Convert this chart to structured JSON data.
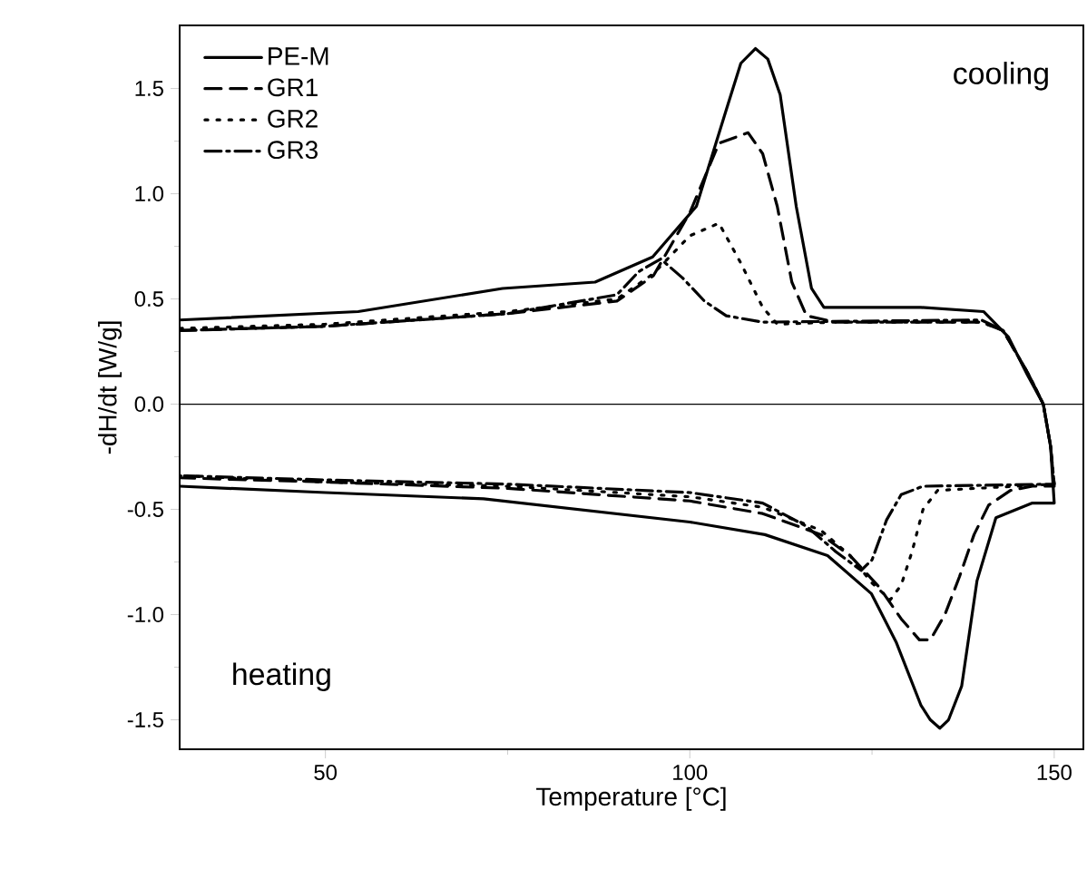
{
  "chart_data": {
    "type": "line",
    "xlabel": "Temperature [°C]",
    "ylabel": "-dH/dt [W/g]",
    "xlim": [
      30,
      154
    ],
    "ylim": [
      -1.64,
      1.8
    ],
    "xticks": [
      50,
      100,
      150
    ],
    "yticks": [
      -1.5,
      {
        "value": -1,
        "label": "-1.0"
      },
      -0.5,
      {
        "value": 0,
        "label": "0.0"
      },
      0.5,
      {
        "value": 1,
        "label": "1.0"
      },
      1.5
    ],
    "legend": "top left",
    "grid": false,
    "marker": "none",
    "ref_lines": [
      {
        "axis": "y",
        "value": 0,
        "color": "#000000"
      }
    ],
    "annotations": [
      "cooling",
      "heating"
    ],
    "series": [
      {
        "name": "PE-M",
        "color": "#000000",
        "line_style": "solid",
        "x": [
          30,
          54.5,
          74.3,
          87,
          94.9,
          100.9,
          105.1,
          107,
          109,
          110.7,
          112.4,
          114.6,
          116.7,
          118.4,
          131.7,
          140.3,
          143.7,
          146.3,
          148.5,
          149.5,
          150,
          147,
          142,
          139.4,
          137.3,
          135.5,
          134.3,
          133,
          131.7,
          128.3,
          124.9,
          118.9,
          110.3,
          100,
          71.7,
          50,
          30
        ],
        "values": [
          0.4,
          0.44,
          0.55,
          0.58,
          0.7,
          0.94,
          1.41,
          1.62,
          1.69,
          1.64,
          1.47,
          0.94,
          0.55,
          0.46,
          0.46,
          0.44,
          0.32,
          0.14,
          0.0,
          -0.2,
          -0.47,
          -0.47,
          -0.54,
          -0.84,
          -1.34,
          -1.5,
          -1.54,
          -1.5,
          -1.43,
          -1.13,
          -0.9,
          -0.72,
          -0.62,
          -0.56,
          -0.45,
          -0.42,
          -0.39
        ]
      },
      {
        "name": "GR1",
        "color": "#000000",
        "line_style": "dashed",
        "x": [
          30,
          50,
          75,
          90,
          95,
          100,
          104,
          108,
          110,
          112,
          114,
          116,
          120,
          140,
          143,
          146.5,
          148.5,
          149.5,
          150,
          147,
          144,
          141,
          139,
          137,
          135,
          133,
          131.5,
          129,
          126,
          122,
          118,
          110,
          100,
          75,
          50,
          30
        ],
        "values": [
          0.35,
          0.37,
          0.43,
          0.49,
          0.61,
          0.91,
          1.24,
          1.29,
          1.19,
          0.94,
          0.58,
          0.42,
          0.39,
          0.39,
          0.35,
          0.14,
          0.0,
          -0.2,
          -0.39,
          -0.39,
          -0.41,
          -0.48,
          -0.62,
          -0.82,
          -1.0,
          -1.12,
          -1.12,
          -1.02,
          -0.87,
          -0.72,
          -0.62,
          -0.52,
          -0.46,
          -0.4,
          -0.37,
          -0.35
        ]
      },
      {
        "name": "GR2",
        "color": "#000000",
        "line_style": "dotted",
        "x": [
          30,
          50,
          75,
          90,
          95,
          100,
          104,
          107,
          110,
          112,
          120,
          140,
          143,
          146.5,
          148.5,
          149.5,
          150,
          134,
          132,
          130.5,
          129,
          127.5,
          125,
          122,
          118,
          110,
          100,
          75,
          50,
          30
        ],
        "values": [
          0.36,
          0.38,
          0.44,
          0.5,
          0.62,
          0.8,
          0.86,
          0.67,
          0.46,
          0.38,
          0.39,
          0.39,
          0.35,
          0.14,
          0.0,
          -0.2,
          -0.38,
          -0.41,
          -0.5,
          -0.7,
          -0.86,
          -0.93,
          -0.85,
          -0.72,
          -0.6,
          -0.49,
          -0.44,
          -0.39,
          -0.37,
          -0.34
        ]
      },
      {
        "name": "GR3",
        "color": "#000000",
        "line_style": "dashdot",
        "x": [
          30,
          50,
          75,
          90,
          93,
          96,
          99,
          102,
          105,
          110,
          140,
          143,
          146.5,
          148.5,
          149.5,
          150,
          132,
          129,
          127,
          125,
          123.5,
          120,
          116,
          110,
          100,
          75,
          50,
          30
        ],
        "values": [
          0.35,
          0.37,
          0.43,
          0.52,
          0.63,
          0.69,
          0.6,
          0.49,
          0.42,
          0.39,
          0.4,
          0.35,
          0.14,
          0.0,
          -0.2,
          -0.38,
          -0.39,
          -0.43,
          -0.55,
          -0.74,
          -0.79,
          -0.7,
          -0.58,
          -0.47,
          -0.42,
          -0.38,
          -0.36,
          -0.34
        ]
      }
    ]
  }
}
